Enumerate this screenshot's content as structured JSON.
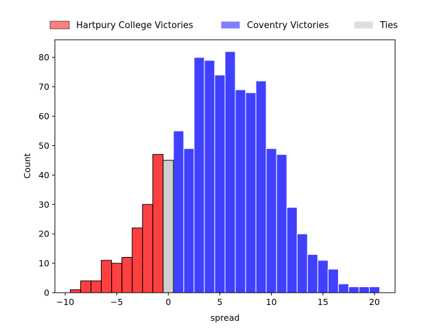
{
  "chart_data": {
    "type": "bar",
    "xlabel": "spread",
    "ylabel": "Count",
    "xlim": [
      -11,
      22
    ],
    "ylim": [
      0,
      86
    ],
    "xticks": [
      -10,
      -5,
      0,
      5,
      10,
      15,
      20
    ],
    "yticks": [
      0,
      10,
      20,
      30,
      40,
      50,
      60,
      70,
      80
    ],
    "grid": false,
    "legend_position": "top",
    "bin_width": 1,
    "series": [
      {
        "name": "Hartpury College Victories",
        "color": "#ff0000",
        "edge_color": "#000000",
        "x": [
          -9,
          -8,
          -7,
          -6,
          -5,
          -4,
          -3,
          -2,
          -1
        ],
        "values": [
          1,
          4,
          4,
          11,
          10,
          12,
          22,
          30,
          47
        ]
      },
      {
        "name": "Coventry Victories",
        "color": "#0000ff",
        "edge_color": "#ffffff",
        "x": [
          1,
          2,
          3,
          4,
          5,
          6,
          7,
          8,
          9,
          10,
          11,
          12,
          13,
          14,
          15,
          16,
          17,
          18,
          19,
          20
        ],
        "values": [
          55,
          49,
          80,
          79,
          74,
          82,
          69,
          68,
          72,
          49,
          47,
          29,
          20,
          13,
          11,
          8,
          3,
          2,
          2,
          2
        ]
      },
      {
        "name": "Ties",
        "color": "#c8c8c8",
        "edge_color": "#000000",
        "x": [
          0
        ],
        "values": [
          45
        ]
      }
    ]
  }
}
